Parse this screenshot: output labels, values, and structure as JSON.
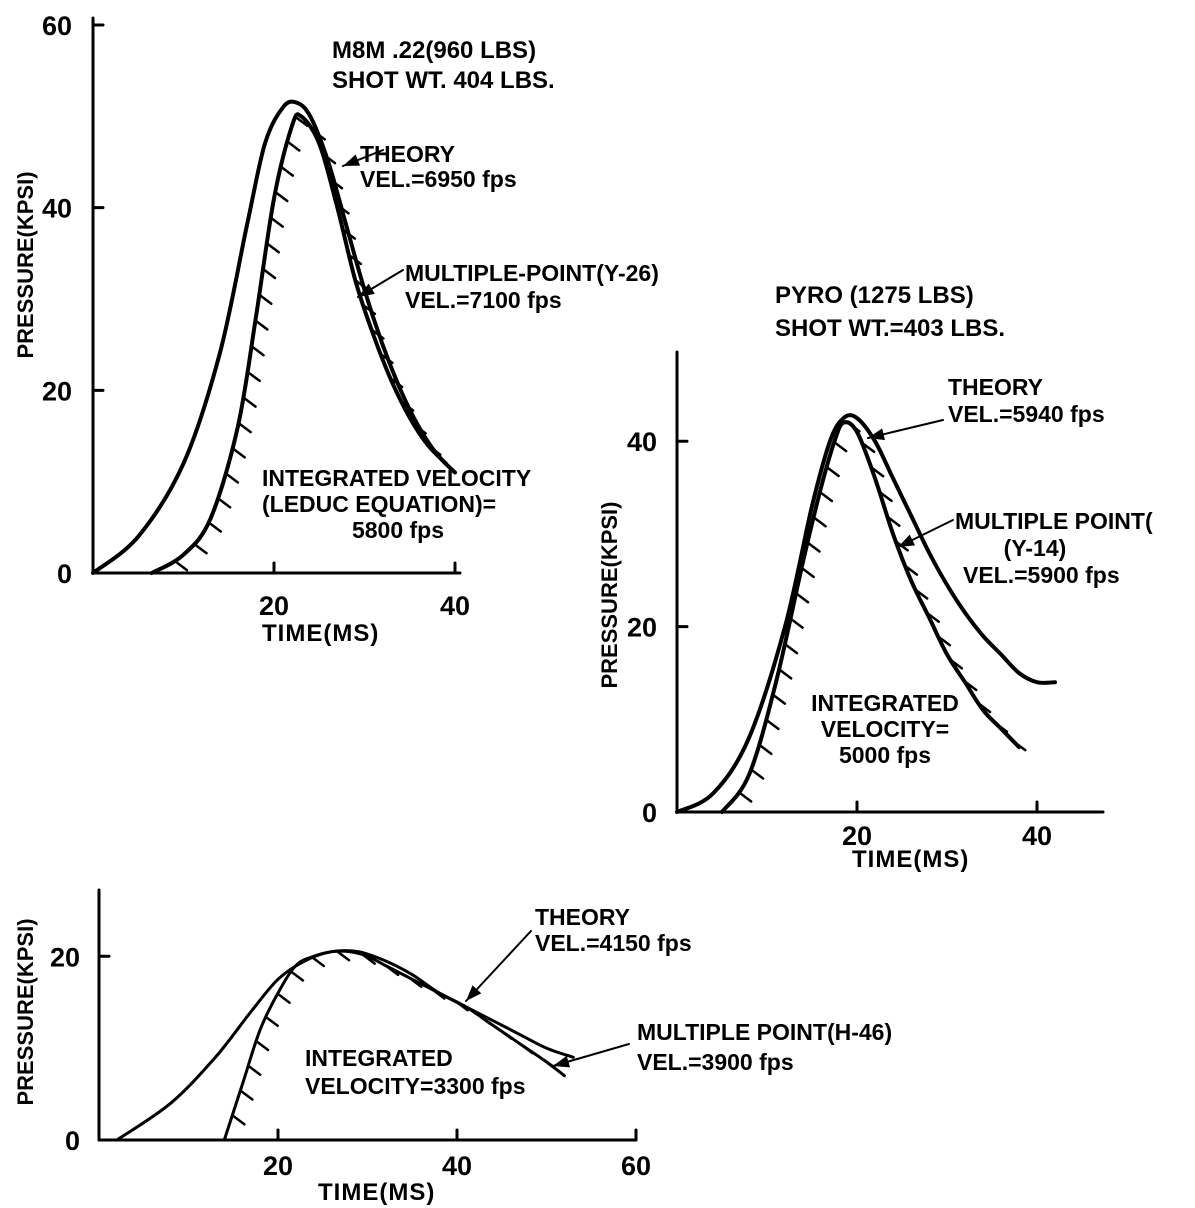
{
  "chart_data": [
    {
      "type": "line",
      "title": "M8M .22(960 LBS)",
      "subtitle": "SHOT WT. 404 LBS.",
      "xlabel": "TIME(MS)",
      "ylabel": "PRESSURE(KPSI)",
      "xlim": [
        0,
        40
      ],
      "ylim": [
        0,
        60
      ],
      "xticks": [
        20,
        40
      ],
      "yticks": [
        0,
        20,
        40,
        60
      ],
      "xtick_labels": [
        "20",
        "40"
      ],
      "ytick_labels": [
        "0",
        "20",
        "40",
        "60"
      ],
      "grid": false,
      "series": [
        {
          "x": [
            0,
            5,
            10,
            14,
            17,
            19,
            21,
            22.5,
            24,
            26,
            28,
            30,
            32,
            34,
            36,
            38,
            40
          ],
          "y": [
            0,
            4,
            12,
            24,
            38,
            47,
            51,
            51.5,
            50,
            45,
            38,
            31,
            25,
            20,
            16,
            13,
            11
          ]
        },
        {
          "x": [
            6.5,
            10,
            13,
            16,
            18,
            20,
            22,
            23,
            25,
            27,
            29,
            31,
            33,
            35,
            37,
            39
          ],
          "y": [
            0,
            2,
            6,
            16,
            28,
            41,
            49,
            50,
            47,
            40,
            32,
            26,
            21,
            17,
            14,
            12
          ]
        }
      ],
      "annotations": [
        {
          "lines": [
            "THEORY",
            "VEL.=6950 fps"
          ]
        },
        {
          "lines": [
            "MULTIPLE-POINT(Y-26)",
            "VEL.=7100 fps"
          ]
        },
        {
          "lines": [
            "INTEGRATED VELOCITY",
            "(LEDUC EQUATION)=",
            "5800 fps"
          ]
        }
      ]
    },
    {
      "type": "line",
      "title": "PYRO (1275 LBS)",
      "subtitle": "SHOT WT.=403 LBS.",
      "xlabel": "TIME(MS)",
      "ylabel": "PRESSURE(KPSI)",
      "xlim": [
        0,
        48
      ],
      "ylim": [
        0,
        52
      ],
      "xticks": [
        20,
        40
      ],
      "yticks": [
        0,
        20,
        40
      ],
      "xtick_labels": [
        "20",
        "40"
      ],
      "ytick_labels": [
        "0",
        "20",
        "40"
      ],
      "grid": false,
      "series": [
        {
          "x": [
            0,
            4,
            8,
            12,
            15,
            17,
            18.5,
            20,
            22,
            24,
            26,
            28,
            30,
            32,
            34,
            36,
            38,
            40,
            42
          ],
          "y": [
            0,
            2,
            8,
            20,
            33,
            40,
            42.5,
            42.5,
            40,
            36,
            32,
            28,
            24.5,
            21.5,
            19,
            17,
            15,
            14,
            14
          ]
        },
        {
          "x": [
            5,
            8,
            11,
            14,
            16,
            17.5,
            18.5,
            20,
            22,
            24,
            26,
            28,
            30,
            32,
            34,
            36,
            38
          ],
          "y": [
            0,
            4,
            14,
            27,
            35,
            40,
            42,
            41,
            36,
            30,
            25,
            21,
            17,
            14,
            11,
            9,
            7
          ]
        }
      ],
      "annotations": [
        {
          "lines": [
            "THEORY",
            "VEL.=5940 fps"
          ]
        },
        {
          "lines": [
            "MULTIPLE POINT(",
            "(Y-14)",
            "VEL.=5900 fps"
          ]
        },
        {
          "lines": [
            "INTEGRATED",
            "VELOCITY=",
            "5000 fps"
          ]
        }
      ]
    },
    {
      "type": "line",
      "title": "",
      "xlabel": "TIME(MS)",
      "ylabel": "PRESSURE(KPSI)",
      "xlim": [
        0,
        60
      ],
      "ylim": [
        0,
        27
      ],
      "xticks": [
        20,
        40,
        60
      ],
      "yticks": [
        0,
        20
      ],
      "xtick_labels": [
        "20",
        "40",
        "60"
      ],
      "ytick_labels": [
        "0",
        "20"
      ],
      "grid": false,
      "series": [
        {
          "x": [
            2,
            8,
            13,
            17,
            20,
            23,
            26,
            29,
            32,
            35,
            38,
            41,
            44,
            47,
            50,
            53
          ],
          "y": [
            0,
            4,
            9,
            14,
            17.5,
            19.5,
            20.5,
            20.5,
            19.5,
            18,
            16,
            14.5,
            13,
            11.5,
            10,
            9
          ]
        },
        {
          "x": [
            14,
            16,
            18,
            20,
            22,
            24,
            26,
            28,
            30,
            32,
            35,
            38,
            41,
            44,
            47,
            50,
            52
          ],
          "y": [
            0,
            6,
            12,
            16,
            19,
            20,
            20.5,
            20.5,
            20,
            19,
            17.5,
            16,
            14.5,
            12.5,
            10.5,
            8.5,
            7
          ]
        }
      ],
      "annotations": [
        {
          "lines": [
            "THEORY",
            "VEL.=4150 fps"
          ]
        },
        {
          "lines": [
            "MULTIPLE POINT(H-46)",
            "VEL.=3900 fps"
          ]
        },
        {
          "lines": [
            "INTEGRATED",
            "VELOCITY=3300 fps"
          ]
        }
      ]
    }
  ]
}
